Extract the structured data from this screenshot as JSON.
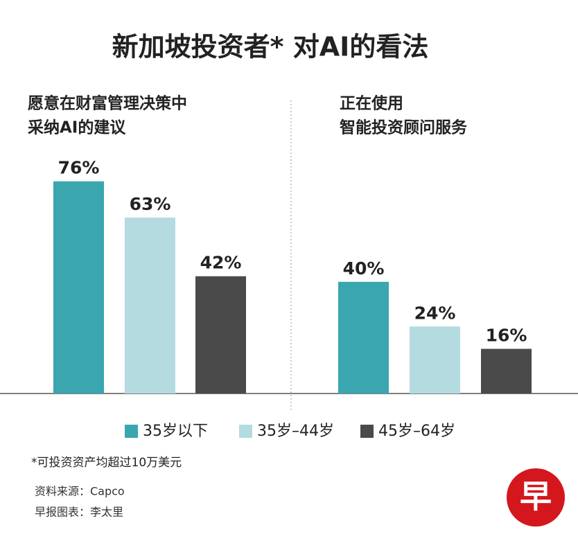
{
  "chart_data": {
    "type": "bar",
    "title": "新加坡投资者* 对AI的看法",
    "categories": [
      "35岁以下",
      "35岁–44岁",
      "45岁–64岁"
    ],
    "colors": [
      "#3aa6b0",
      "#b3dbe0",
      "#4a4a4a"
    ],
    "ylim": [
      0,
      100
    ],
    "panels": [
      {
        "title": [
          "愿意在财富管理决策中",
          "采纳AI的建议"
        ],
        "values": [
          76,
          63,
          42
        ],
        "value_labels": [
          "76%",
          "63%",
          "42%"
        ]
      },
      {
        "title": [
          "正在使用",
          "智能投资顾问服务"
        ],
        "values": [
          40,
          24,
          16
        ],
        "value_labels": [
          "40%",
          "24%",
          "16%"
        ]
      }
    ],
    "footnote": "*可投资资产均超过10万美元",
    "source": "资料来源：Capco",
    "credit": "早报图表：李太里",
    "logo": "早"
  }
}
